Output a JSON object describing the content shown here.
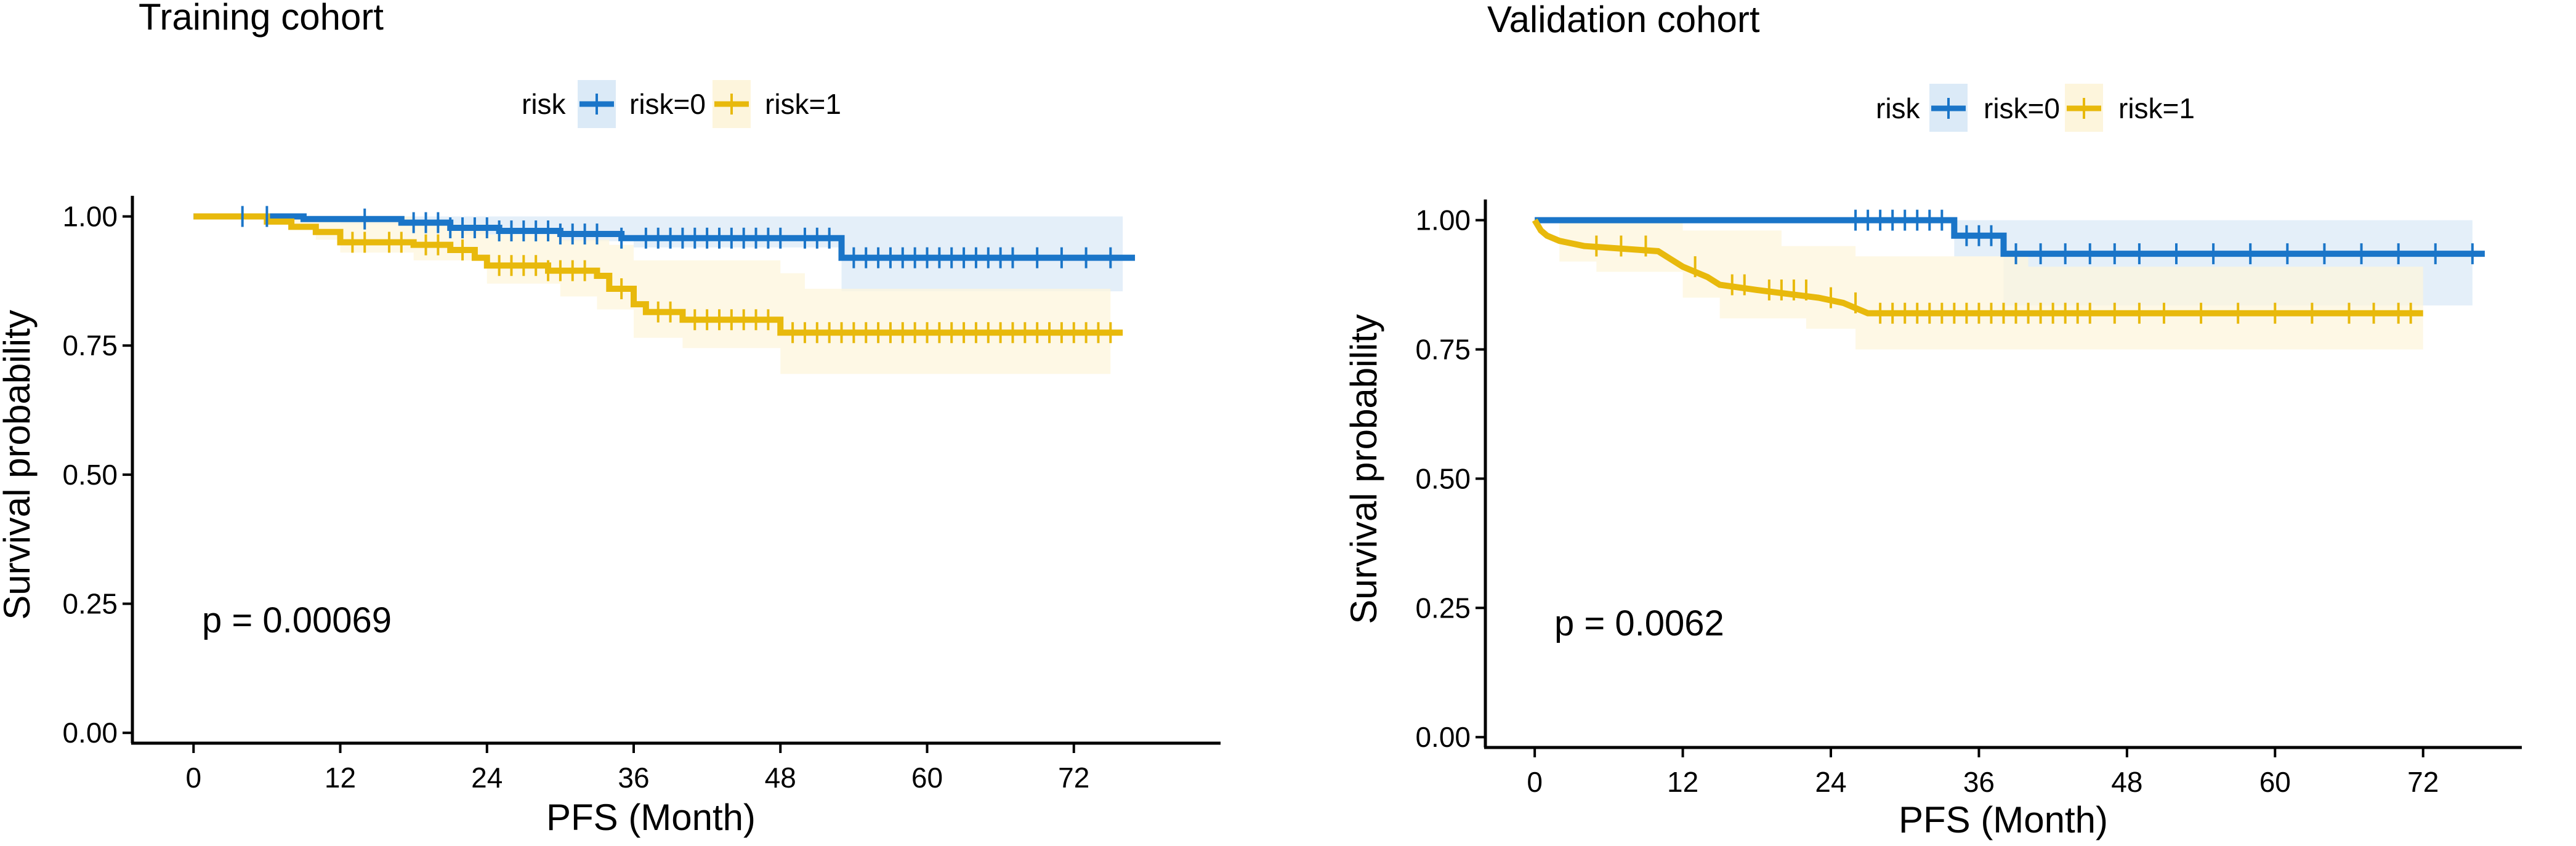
{
  "chart_data": [
    {
      "type": "line",
      "subtype": "kaplan-meier",
      "title": "Training cohort",
      "xlabel": "PFS (Month)",
      "ylabel": "Survival probability",
      "xlim": [
        -5,
        84
      ],
      "ylim": [
        -0.02,
        1.04
      ],
      "xticks": [
        "0",
        "12",
        "24",
        "36",
        "48",
        "60",
        "72"
      ],
      "xtick_values": [
        0,
        12,
        24,
        36,
        48,
        60,
        72
      ],
      "yticks": [
        "0.00",
        "0.25",
        "0.50",
        "0.75",
        "1.00"
      ],
      "ytick_values": [
        0,
        0.25,
        0.5,
        0.75,
        1.0
      ],
      "legend": {
        "title": "risk",
        "position": "top",
        "labels": [
          "risk=0",
          "risk=1"
        ]
      },
      "annotation": "p = 0.00069",
      "series": [
        {
          "name": "risk=0",
          "color": "#1a75c8",
          "band_color": "#dbeaf7",
          "steps": [
            [
              0,
              1.0
            ],
            [
              9,
              1.0
            ],
            [
              9,
              0.995
            ],
            [
              17,
              0.995
            ],
            [
              17,
              0.988
            ],
            [
              21,
              0.988
            ],
            [
              21,
              0.978
            ],
            [
              25,
              0.978
            ],
            [
              25,
              0.972
            ],
            [
              30,
              0.972
            ],
            [
              30,
              0.966
            ],
            [
              35,
              0.966
            ],
            [
              35,
              0.958
            ],
            [
              53,
              0.958
            ],
            [
              53,
              0.92
            ],
            [
              77,
              0.92
            ]
          ],
          "lower": [
            [
              0,
              1.0
            ],
            [
              12,
              1.0
            ],
            [
              12,
              0.985
            ],
            [
              22,
              0.985
            ],
            [
              22,
              0.965
            ],
            [
              30,
              0.965
            ],
            [
              30,
              0.952
            ],
            [
              36,
              0.952
            ],
            [
              36,
              0.94
            ],
            [
              53,
              0.94
            ],
            [
              53,
              0.855
            ],
            [
              76,
              0.855
            ]
          ],
          "upper": [
            [
              0,
              1.0
            ],
            [
              53,
              1.0
            ],
            [
              76,
              1.0
            ]
          ],
          "censors": [
            4,
            6,
            14,
            18,
            19,
            20,
            21,
            22,
            23,
            24,
            25,
            26,
            27,
            28,
            29,
            30,
            31,
            32,
            33,
            35,
            37,
            38,
            39,
            40,
            41,
            42,
            43,
            44,
            45,
            46,
            47,
            48,
            50,
            51,
            52,
            54,
            55,
            56,
            57,
            58,
            59,
            60,
            61,
            62,
            63,
            64,
            65,
            66,
            67,
            69,
            71,
            73,
            75
          ]
        },
        {
          "name": "risk=1",
          "color": "#e8b90c",
          "band_color": "#fdf5dc",
          "steps": [
            [
              0,
              1.0
            ],
            [
              6,
              1.0
            ],
            [
              6,
              0.99
            ],
            [
              8,
              0.99
            ],
            [
              8,
              0.98
            ],
            [
              10,
              0.98
            ],
            [
              10,
              0.97
            ],
            [
              12,
              0.97
            ],
            [
              12,
              0.95
            ],
            [
              18,
              0.95
            ],
            [
              18,
              0.945
            ],
            [
              21,
              0.945
            ],
            [
              21,
              0.935
            ],
            [
              23,
              0.935
            ],
            [
              23,
              0.92
            ],
            [
              24,
              0.92
            ],
            [
              24,
              0.905
            ],
            [
              29,
              0.905
            ],
            [
              29,
              0.895
            ],
            [
              33,
              0.895
            ],
            [
              33,
              0.885
            ],
            [
              34,
              0.885
            ],
            [
              34,
              0.86
            ],
            [
              36,
              0.86
            ],
            [
              36,
              0.83
            ],
            [
              37,
              0.83
            ],
            [
              37,
              0.815
            ],
            [
              40,
              0.815
            ],
            [
              40,
              0.8
            ],
            [
              48,
              0.8
            ],
            [
              48,
              0.775
            ],
            [
              76,
              0.775
            ]
          ],
          "lower": [
            [
              0,
              1.0
            ],
            [
              6,
              0.985
            ],
            [
              10,
              0.955
            ],
            [
              12,
              0.93
            ],
            [
              18,
              0.915
            ],
            [
              24,
              0.87
            ],
            [
              30,
              0.845
            ],
            [
              33,
              0.82
            ],
            [
              36,
              0.765
            ],
            [
              40,
              0.745
            ],
            [
              48,
              0.695
            ],
            [
              75,
              0.695
            ]
          ],
          "upper": [
            [
              0,
              1.0
            ],
            [
              18,
              0.985
            ],
            [
              24,
              0.965
            ],
            [
              30,
              0.955
            ],
            [
              34,
              0.945
            ],
            [
              36,
              0.915
            ],
            [
              48,
              0.89
            ],
            [
              50,
              0.86
            ],
            [
              75,
              0.86
            ]
          ],
          "censors": [
            13,
            14,
            16,
            17,
            19,
            20,
            22,
            25,
            26,
            27,
            28,
            29,
            30,
            31,
            32,
            35,
            38,
            39,
            41,
            42,
            43,
            44,
            45,
            46,
            47,
            49,
            50,
            51,
            52,
            53,
            54,
            55,
            56,
            57,
            58,
            59,
            60,
            61,
            62,
            63,
            64,
            65,
            66,
            67,
            68,
            69,
            70,
            71,
            72,
            73,
            74,
            75
          ]
        }
      ]
    },
    {
      "type": "line",
      "subtype": "kaplan-meier",
      "title": "Validation cohort",
      "xlabel": "PFS (Month)",
      "ylabel": "Survival probability",
      "xlim": [
        -4,
        80
      ],
      "ylim": [
        -0.02,
        1.04
      ],
      "xticks": [
        "0",
        "12",
        "24",
        "36",
        "48",
        "60",
        "72"
      ],
      "xtick_values": [
        0,
        12,
        24,
        36,
        48,
        60,
        72
      ],
      "yticks": [
        "0.00",
        "0.25",
        "0.50",
        "0.75",
        "1.00"
      ],
      "ytick_values": [
        0,
        0.25,
        0.5,
        0.75,
        1.0
      ],
      "legend": {
        "title": "risk",
        "position": "top",
        "labels": [
          "risk=0",
          "risk=1"
        ]
      },
      "annotation": "p = 0.0062",
      "series": [
        {
          "name": "risk=0",
          "color": "#1a75c8",
          "band_color": "#dbeaf7",
          "steps": [
            [
              0,
              1.0
            ],
            [
              34,
              1.0
            ],
            [
              34,
              0.97
            ],
            [
              38,
              0.97
            ],
            [
              38,
              0.935
            ],
            [
              77,
              0.935
            ]
          ],
          "lower": [
            [
              0,
              1.0
            ],
            [
              34,
              1.0
            ],
            [
              34,
              0.93
            ],
            [
              38,
              0.93
            ],
            [
              38,
              0.835
            ],
            [
              76,
              0.835
            ]
          ],
          "upper": [
            [
              0,
              1.0
            ],
            [
              76,
              1.0
            ]
          ],
          "censors": [
            26,
            27,
            28,
            29,
            30,
            31,
            32,
            33,
            35,
            36,
            37,
            39,
            41,
            43,
            45,
            47,
            49,
            52,
            55,
            58,
            61,
            64,
            67,
            70,
            73,
            76
          ]
        },
        {
          "name": "risk=1",
          "color": "#e8b90c",
          "band_color": "#fdf5dc",
          "steps": [
            [
              0,
              1.0
            ],
            [
              0.5,
              0.98
            ],
            [
              1,
              0.97
            ],
            [
              2,
              0.96
            ],
            [
              4,
              0.95
            ],
            [
              10,
              0.94
            ],
            [
              11,
              0.925
            ],
            [
              12,
              0.91
            ],
            [
              14,
              0.89
            ],
            [
              15,
              0.875
            ],
            [
              18,
              0.865
            ],
            [
              23,
              0.85
            ],
            [
              25,
              0.84
            ],
            [
              27,
              0.82
            ],
            [
              72,
              0.82
            ]
          ],
          "lower": [
            [
              0,
              0.995
            ],
            [
              2,
              0.92
            ],
            [
              5,
              0.9
            ],
            [
              12,
              0.85
            ],
            [
              15,
              0.81
            ],
            [
              22,
              0.79
            ],
            [
              26,
              0.75
            ],
            [
              72,
              0.75
            ]
          ],
          "upper": [
            [
              0,
              1.0
            ],
            [
              12,
              0.98
            ],
            [
              20,
              0.95
            ],
            [
              26,
              0.93
            ],
            [
              40,
              0.91
            ],
            [
              72,
              0.91
            ]
          ],
          "censors": [
            5,
            7,
            9,
            13,
            16,
            17,
            19,
            20,
            21,
            22,
            24,
            26,
            28,
            29,
            30,
            31,
            32,
            33,
            34,
            35,
            36,
            37,
            38,
            39,
            40,
            41,
            42,
            43,
            44,
            45,
            47,
            49,
            51,
            54,
            57,
            60,
            63,
            66,
            68,
            70,
            71
          ]
        }
      ]
    }
  ]
}
